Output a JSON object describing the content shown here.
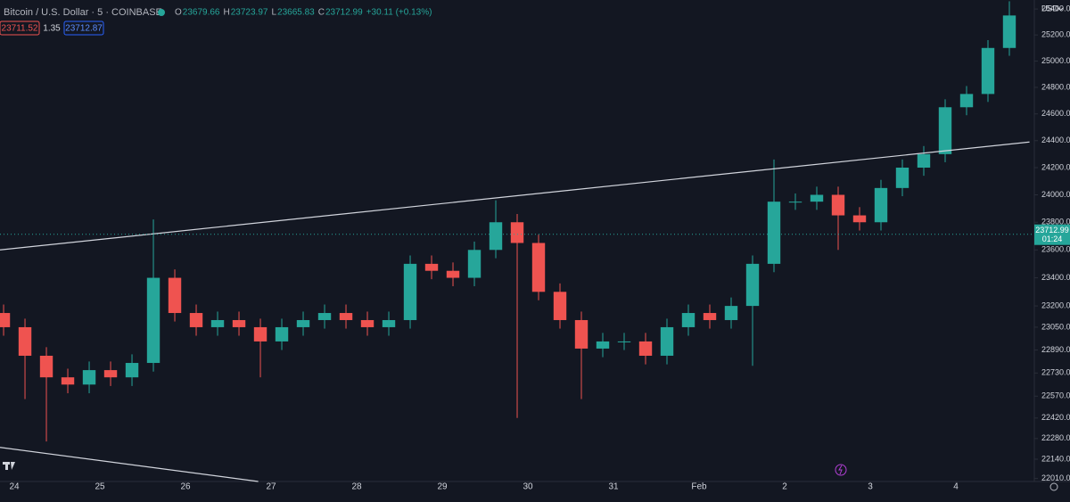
{
  "header": {
    "symbol": "Bitcoin / U.S. Dollar · 5 · COINBASE",
    "ohlc": [
      {
        "label": "O",
        "value": 23679.66
      },
      {
        "label": "H",
        "value": 23723.97
      },
      {
        "label": "L",
        "value": 23665.83
      },
      {
        "label": "C",
        "value": 23712.99
      }
    ],
    "change": "+30.11 (+0.13%)",
    "bid": 23711.52,
    "spread": 1.35,
    "ask": 23712.87
  },
  "chart_data": {
    "type": "candlestick",
    "currency": "USD",
    "log_scale": true,
    "up_color": "#26a69a",
    "down_color": "#ef5350",
    "last_price": 23712.99,
    "countdown": "01:24",
    "xlim": [
      -0.167,
      11.875
    ],
    "ylim": [
      21960,
      25470
    ],
    "xticks": [
      {
        "value": 0,
        "label": "24"
      },
      {
        "value": 1,
        "label": "25"
      },
      {
        "value": 2,
        "label": "26"
      },
      {
        "value": 3,
        "label": "27"
      },
      {
        "value": 4,
        "label": "28"
      },
      {
        "value": 5,
        "label": "29"
      },
      {
        "value": 6,
        "label": "30"
      },
      {
        "value": 7,
        "label": "31"
      },
      {
        "value": 8,
        "label": "Feb"
      },
      {
        "value": 9,
        "label": "2"
      },
      {
        "value": 10,
        "label": "3"
      },
      {
        "value": 11,
        "label": "4"
      }
    ],
    "yticks": [
      {
        "value": 25400,
        "label": "25400.00"
      },
      {
        "value": 25200,
        "label": "25200.00"
      },
      {
        "value": 25000,
        "label": "25000.00"
      },
      {
        "value": 24800,
        "label": "24800.00"
      },
      {
        "value": 24600,
        "label": "24600.00"
      },
      {
        "value": 24400,
        "label": "24400.00"
      },
      {
        "value": 24200,
        "label": "24200.00"
      },
      {
        "value": 24000,
        "label": "24000.00"
      },
      {
        "value": 23800,
        "label": "23800.00"
      },
      {
        "value": 23600,
        "label": "23600.00"
      },
      {
        "value": 23400,
        "label": "23400.00"
      },
      {
        "value": 23200,
        "label": "23200.00"
      },
      {
        "value": 23050,
        "label": "23050.00"
      },
      {
        "value": 22890,
        "label": "22890.00"
      },
      {
        "value": 22730,
        "label": "22730.00"
      },
      {
        "value": 22570,
        "label": "22570.00"
      },
      {
        "value": 22420,
        "label": "22420.00"
      },
      {
        "value": 22280,
        "label": "22280.00"
      },
      {
        "value": 22140,
        "label": "22140.00"
      },
      {
        "value": 22010,
        "label": "22010.00"
      }
    ],
    "x": [
      -0.125,
      0.125,
      0.375,
      0.625,
      0.875,
      1.125,
      1.375,
      1.625,
      1.875,
      2.125,
      2.375,
      2.625,
      2.875,
      3.125,
      3.375,
      3.625,
      3.875,
      4.125,
      4.375,
      4.625,
      4.875,
      5.125,
      5.375,
      5.625,
      5.875,
      6.125,
      6.375,
      6.625,
      6.875,
      7.125,
      7.375,
      7.625,
      7.875,
      8.125,
      8.375,
      8.625,
      8.875,
      9.125,
      9.375,
      9.625,
      9.875,
      10.125,
      10.375,
      10.625,
      10.875,
      11.125,
      11.375,
      11.625
    ],
    "open": [
      23150,
      23050,
      22850,
      22700,
      22650,
      22750,
      22700,
      22800,
      23400,
      23150,
      23050,
      23100,
      23050,
      22950,
      23050,
      23100,
      23150,
      23100,
      23050,
      23100,
      23500,
      23450,
      23400,
      23600,
      23800,
      23650,
      23300,
      23100,
      22900,
      22950,
      22950,
      22850,
      23050,
      23150,
      23100,
      23200,
      23500,
      23950,
      23950,
      24000,
      23850,
      23800,
      24050,
      24200,
      24300,
      24650,
      24750,
      25100
    ],
    "high": [
      23210,
      23110,
      22910,
      22760,
      22810,
      22810,
      22860,
      23820,
      23460,
      23210,
      23160,
      23160,
      23110,
      23110,
      23160,
      23210,
      23210,
      23160,
      23160,
      23560,
      23560,
      23510,
      23660,
      23960,
      23860,
      23710,
      23360,
      23160,
      23010,
      23010,
      23010,
      23110,
      23210,
      23210,
      23260,
      23560,
      24260,
      24010,
      24060,
      24060,
      23910,
      24110,
      24260,
      24360,
      24710,
      24810,
      25160,
      25460
    ],
    "low": [
      22990,
      22550,
      22260,
      22590,
      22590,
      22640,
      22640,
      22740,
      23090,
      22990,
      22990,
      22990,
      22700,
      22890,
      22990,
      23040,
      23040,
      22990,
      22990,
      23040,
      23390,
      23340,
      23340,
      23540,
      22420,
      23240,
      23040,
      22550,
      22840,
      22890,
      22790,
      22790,
      22990,
      23040,
      23040,
      22780,
      23440,
      23890,
      23890,
      23600,
      23740,
      23740,
      23990,
      24140,
      24240,
      24590,
      24690,
      25040
    ],
    "close": [
      23050,
      22850,
      22700,
      22650,
      22750,
      22700,
      22800,
      23400,
      23150,
      23050,
      23100,
      23050,
      22950,
      23050,
      23100,
      23150,
      23100,
      23050,
      23100,
      23500,
      23450,
      23400,
      23600,
      23800,
      23650,
      23300,
      23100,
      22900,
      22950,
      22950,
      22850,
      23050,
      23150,
      23100,
      23200,
      23500,
      23950,
      23950,
      24000,
      23850,
      23800,
      24050,
      24200,
      24300,
      24650,
      24750,
      25100,
      25350
    ],
    "trendlines": [
      {
        "x": [
          -0.167,
          11.86
        ],
        "y": [
          23600,
          24390
        ]
      },
      {
        "x": [
          -0.167,
          2.85
        ],
        "y": [
          22220,
          21990
        ]
      }
    ]
  }
}
